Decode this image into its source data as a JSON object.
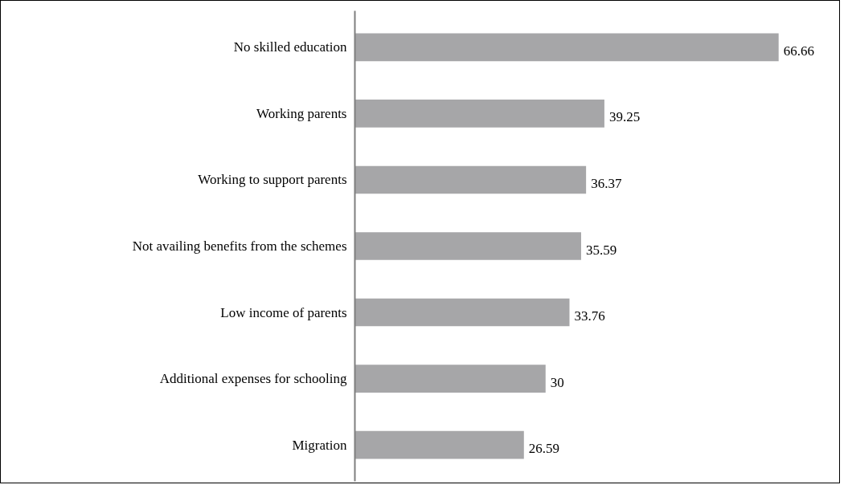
{
  "chart_data": {
    "type": "bar",
    "orientation": "horizontal",
    "categories": [
      "No skilled education",
      "Working parents",
      "Working to support parents",
      "Not availing benefits from the schemes",
      "Low income of parents",
      "Additional expenses for schooling",
      "Migration"
    ],
    "values": [
      66.66,
      39.25,
      36.37,
      35.59,
      33.76,
      30,
      26.59
    ],
    "color": "#a6a6a8",
    "data_labels": true,
    "grid": false,
    "tick_labels": "y"
  }
}
